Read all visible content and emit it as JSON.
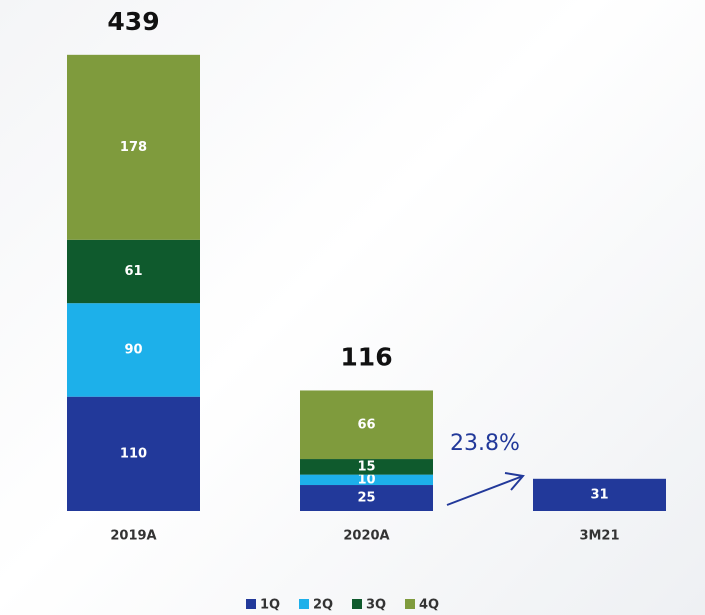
{
  "chart_data": {
    "type": "stacked_bar",
    "categories": [
      "2019A",
      "2020A",
      "3M21"
    ],
    "series": [
      {
        "name": "1Q",
        "color": "#22399a",
        "values": [
          110,
          25,
          31
        ]
      },
      {
        "name": "2Q",
        "color": "#1db0ea",
        "values": [
          90,
          10,
          null
        ]
      },
      {
        "name": "3Q",
        "color": "#0f5a2d",
        "values": [
          61,
          15,
          null
        ]
      },
      {
        "name": "4Q",
        "color": "#7f9b3d",
        "values": [
          178,
          66,
          null
        ]
      }
    ],
    "totals": [
      439,
      116,
      null
    ],
    "annotation": "23.8%",
    "ylim": [
      0,
      460
    ],
    "legend": "bottom"
  }
}
